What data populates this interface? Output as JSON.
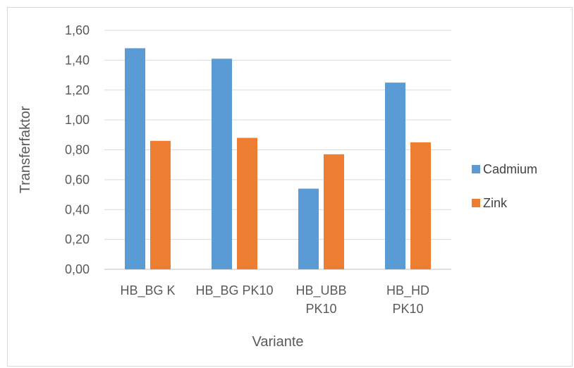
{
  "chart_data": {
    "type": "bar",
    "title": "",
    "xlabel": "Variante",
    "ylabel": "Transferfaktor",
    "categories": [
      [
        "HB_BG K"
      ],
      [
        "HB_BG PK10"
      ],
      [
        "HB_UBB",
        "PK10"
      ],
      [
        "HB_HD",
        "PK10"
      ]
    ],
    "series": [
      {
        "name": "Cadmium",
        "color": "#5b9bd5",
        "values": [
          1.48,
          1.41,
          0.54,
          1.25
        ]
      },
      {
        "name": "Zink",
        "color": "#ed7d31",
        "values": [
          0.86,
          0.88,
          0.77,
          0.85
        ]
      }
    ],
    "ylim": [
      0,
      1.6
    ],
    "yticks": [
      "0,00",
      "0,20",
      "0,40",
      "0,60",
      "0,80",
      "1,00",
      "1,20",
      "1,40",
      "1,60"
    ],
    "grid": true,
    "legend_position": "right",
    "gridline_color": "#d9d9d9",
    "axis_color": "#bfbfbf"
  }
}
